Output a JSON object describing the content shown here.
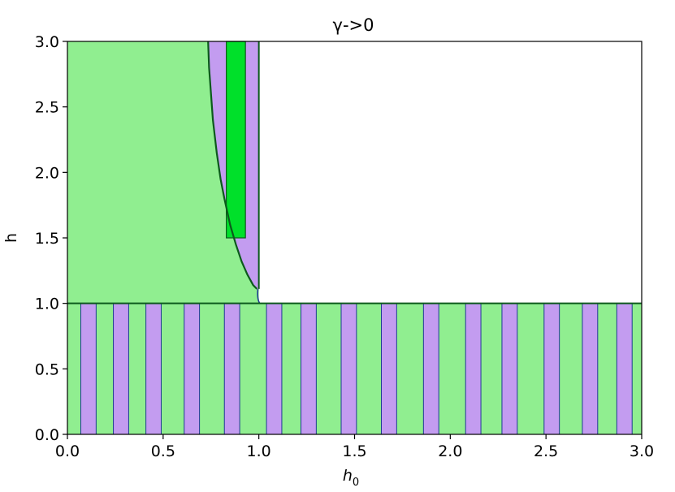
{
  "chart_data": {
    "type": "area",
    "title": "γ->0",
    "xlabel": "h",
    "xlabel_subscript": "0",
    "ylabel": "h",
    "xlim": [
      0.0,
      3.0
    ],
    "ylim": [
      0.0,
      3.0
    ],
    "xticks": [
      "0.0",
      "0.5",
      "1.0",
      "1.5",
      "2.0",
      "2.5",
      "3.0"
    ],
    "yticks": [
      "0.0",
      "0.5",
      "1.0",
      "1.5",
      "2.0",
      "2.5",
      "3.0"
    ],
    "grid": false,
    "legend": "none",
    "colors": {
      "light_green": "#90ee90",
      "bright_green": "#00e02a",
      "lavender": "#c39cf0",
      "dark_green": "#0c5a1c",
      "navy": "#1f3a93",
      "white": "#ffffff"
    },
    "regions": {
      "lower_band": {
        "x": [
          0.0,
          3.0
        ],
        "y": [
          0.0,
          1.0
        ]
      },
      "upper_left": {
        "x": [
          0.0,
          1.0
        ],
        "y": [
          1.0,
          3.0
        ]
      },
      "boundary_curve": {
        "x": [
          0.735,
          0.74,
          0.75,
          0.76,
          0.78,
          0.8,
          0.82,
          0.85,
          0.88,
          0.91,
          0.94,
          0.97,
          0.99
        ],
        "y": [
          3.0,
          2.8,
          2.6,
          2.4,
          2.15,
          1.95,
          1.8,
          1.6,
          1.45,
          1.32,
          1.22,
          1.14,
          1.11
        ]
      },
      "bright_green_rect": {
        "x": [
          0.83,
          0.93
        ],
        "y": [
          1.5,
          3.0
        ]
      },
      "lower_stripes_x": [
        [
          0.07,
          0.15
        ],
        [
          0.24,
          0.32
        ],
        [
          0.41,
          0.49
        ],
        [
          0.61,
          0.69
        ],
        [
          0.82,
          0.9
        ],
        [
          1.04,
          1.12
        ],
        [
          1.22,
          1.3
        ],
        [
          1.43,
          1.51
        ],
        [
          1.64,
          1.72
        ],
        [
          1.86,
          1.94
        ],
        [
          2.08,
          2.16
        ],
        [
          2.27,
          2.35
        ],
        [
          2.49,
          2.57
        ],
        [
          2.69,
          2.77
        ],
        [
          2.87,
          2.95
        ]
      ]
    }
  }
}
